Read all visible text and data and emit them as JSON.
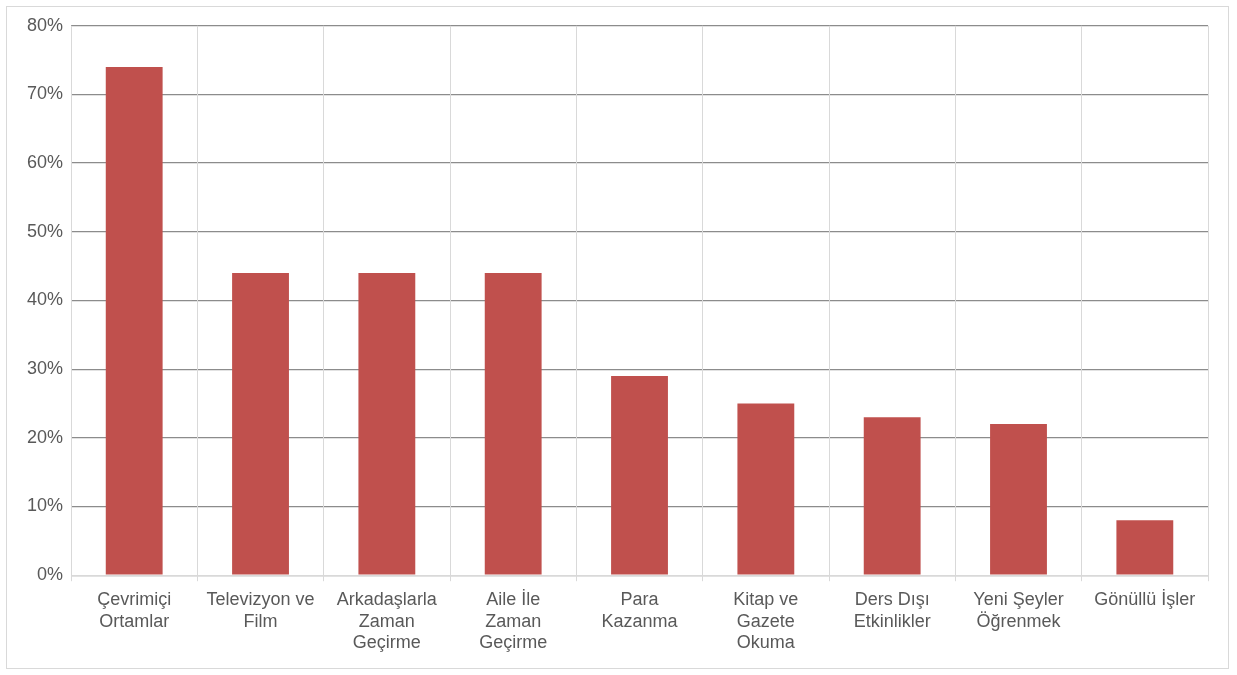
{
  "chart_data": {
    "type": "bar",
    "categories": [
      "Çevrimiçi Ortamlar",
      "Televizyon ve Film",
      "Arkadaşlarla Zaman Geçirme",
      "Aile İle Zaman Geçirme",
      "Para Kazanma",
      "Kitap ve Gazete Okuma",
      "Ders Dışı Etkinlikler",
      "Yeni Şeyler Öğrenmek",
      "Gönüllü İşler"
    ],
    "values": [
      74,
      44,
      44,
      44,
      29,
      25,
      23,
      22,
      8
    ],
    "color": "#c0504d",
    "ylim": [
      0,
      80
    ],
    "yticks": [
      {
        "value": 0,
        "label": "0%"
      },
      {
        "value": 10,
        "label": "10%"
      },
      {
        "value": 20,
        "label": "20%"
      },
      {
        "value": 30,
        "label": "30%"
      },
      {
        "value": 40,
        "label": "40%"
      },
      {
        "value": 50,
        "label": "50%"
      },
      {
        "value": 60,
        "label": "60%"
      },
      {
        "value": 70,
        "label": "70%"
      },
      {
        "value": 80,
        "label": "80%"
      }
    ],
    "grid": true,
    "legend": false
  }
}
